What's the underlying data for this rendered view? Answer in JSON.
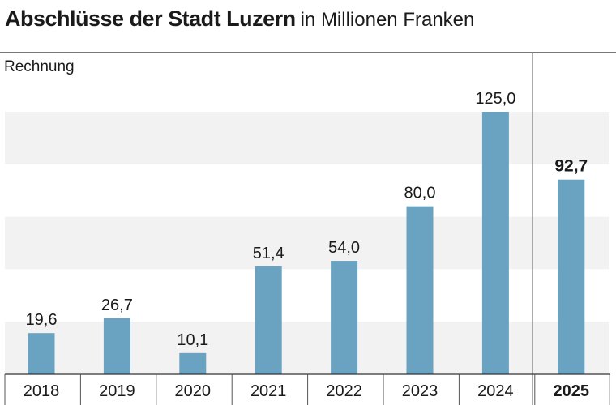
{
  "header": {
    "title": "Abschlüsse der Stadt Luzern",
    "subtitle": "in Millionen Franken"
  },
  "chart_data": {
    "type": "bar",
    "title": "Abschlüsse der Stadt Luzern",
    "subtitle": "in Millionen Franken",
    "ylabel": "Rechnung",
    "xlabel": "",
    "categories": [
      "2018",
      "2019",
      "2020",
      "2021",
      "2022",
      "2023",
      "2024",
      "2025"
    ],
    "value_labels": [
      "19,6",
      "26,7",
      "10,1",
      "51,4",
      "54,0",
      "80,0",
      "125,0",
      "92,7"
    ],
    "series": [
      {
        "values": [
          19.6,
          26.7,
          10.1,
          51.4,
          54.0,
          80.0,
          125.0,
          92.7
        ]
      }
    ],
    "highlighted_category": "2025",
    "ylim": [
      0,
      125
    ],
    "grid": "alternating horizontal bands",
    "bar_color": "#6aa3c2",
    "band_color": "#f2f2f2"
  }
}
